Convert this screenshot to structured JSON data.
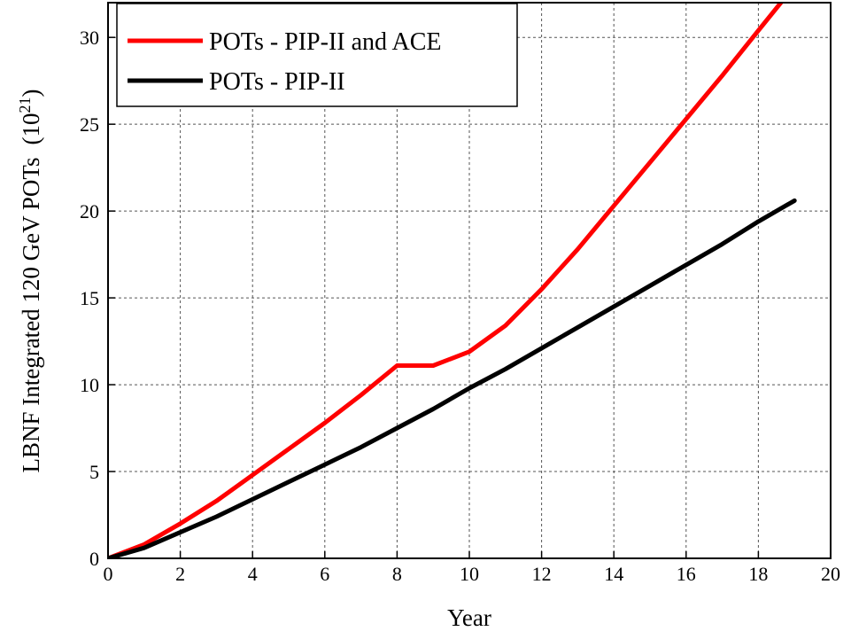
{
  "chart_data": {
    "type": "line",
    "title": "",
    "xlabel": "Year",
    "ylabel": "LBNF Integrated 120 GeV POTs",
    "ylabel_unit_base": "(10",
    "ylabel_unit_exp": "21",
    "ylabel_unit_close": ")",
    "xlim": [
      0,
      20
    ],
    "ylim": [
      0,
      32
    ],
    "xticks": [
      0,
      2,
      4,
      6,
      8,
      10,
      12,
      14,
      16,
      18,
      20
    ],
    "yticks": [
      0,
      5,
      10,
      15,
      20,
      25,
      30
    ],
    "grid": true,
    "legend_position": "top-left",
    "series": [
      {
        "name": "POTs - PIP-II and ACE",
        "color": "#ff0000",
        "x": [
          0,
          1,
          2,
          3,
          4,
          5,
          6,
          7,
          8,
          9,
          10,
          11,
          12,
          13,
          14,
          15,
          16,
          17,
          18,
          18.7
        ],
        "y": [
          0,
          0.8,
          2.0,
          3.3,
          4.8,
          6.3,
          7.8,
          9.4,
          11.1,
          11.1,
          11.9,
          13.4,
          15.5,
          17.8,
          20.3,
          22.8,
          25.3,
          27.8,
          30.4,
          32.2
        ]
      },
      {
        "name": "POTs - PIP-II",
        "color": "#000000",
        "x": [
          0,
          1,
          2,
          3,
          4,
          5,
          6,
          7,
          8,
          9,
          10,
          11,
          12,
          13,
          14,
          15,
          16,
          17,
          18,
          19
        ],
        "y": [
          0,
          0.6,
          1.5,
          2.4,
          3.4,
          4.4,
          5.4,
          6.4,
          7.5,
          8.6,
          9.8,
          10.9,
          12.1,
          13.3,
          14.5,
          15.7,
          16.9,
          18.1,
          19.4,
          20.6
        ]
      }
    ]
  }
}
